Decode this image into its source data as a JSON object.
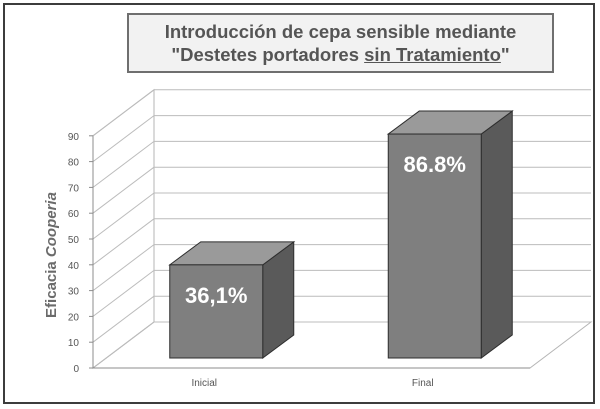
{
  "chart_data": {
    "type": "bar",
    "title_line1": "Introducción de cepa sensible mediante",
    "title_line2_pre": "\"Destetes portadores ",
    "title_line2_underlined": "sin Tratamiento",
    "title_line2_post": "\"",
    "ylabel_prefix": "Eficacia ",
    "ylabel_italic": "Cooperia",
    "categories": [
      "Inicial",
      "Final"
    ],
    "values": [
      36.1,
      86.8
    ],
    "data_labels": [
      "36,1%",
      "86.8%"
    ],
    "yticks": [
      "0",
      "10",
      "20",
      "30",
      "40",
      "50",
      "60",
      "70",
      "80",
      "90"
    ],
    "ylim": [
      0,
      90
    ],
    "grid": true,
    "bar_color": "#7f7f7f"
  }
}
